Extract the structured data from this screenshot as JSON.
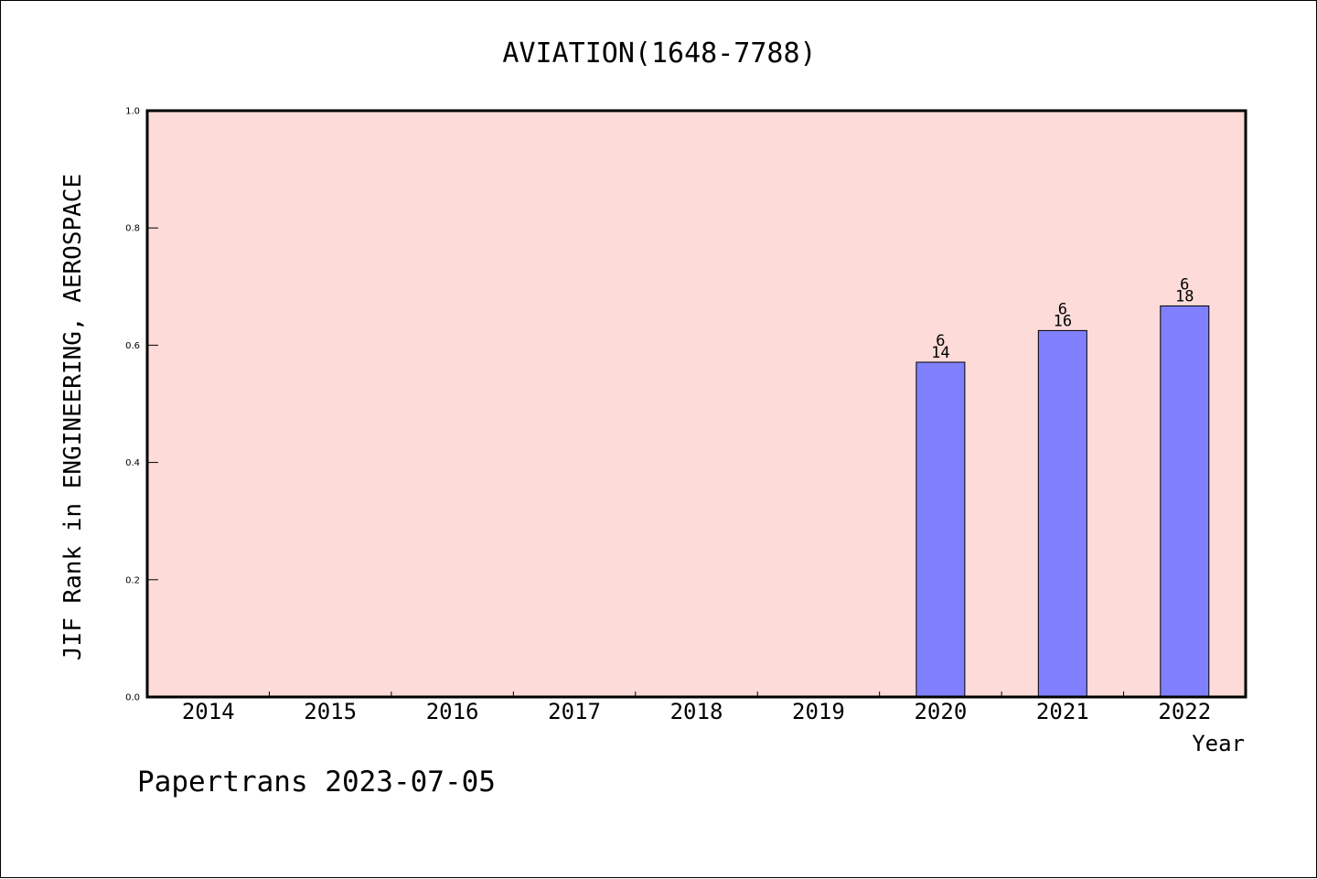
{
  "chart_data": {
    "type": "bar",
    "title": "AVIATION(1648-7788)",
    "xlabel": "Year",
    "ylabel": "JIF Rank in ENGINEERING, AEROSPACE",
    "categories": [
      "2014",
      "2015",
      "2016",
      "2017",
      "2018",
      "2019",
      "2020",
      "2021",
      "2022"
    ],
    "values": [
      null,
      null,
      null,
      null,
      null,
      null,
      0.571,
      0.625,
      0.667
    ],
    "bar_labels": [
      null,
      null,
      null,
      null,
      null,
      null,
      {
        "rank": "6",
        "total": "14"
      },
      {
        "rank": "6",
        "total": "16"
      },
      {
        "rank": "6",
        "total": "18"
      }
    ],
    "ylim": [
      0,
      1.0
    ],
    "yticks": [
      "0.0",
      "0.2",
      "0.4",
      "0.6",
      "0.8",
      "1.0"
    ],
    "grid": false,
    "colors": {
      "plot_background": "#fddbd8",
      "bar_fill": "#8080ff",
      "bar_edge": "#000000"
    }
  },
  "footer": {
    "text": "Papertrans 2023-07-05"
  }
}
